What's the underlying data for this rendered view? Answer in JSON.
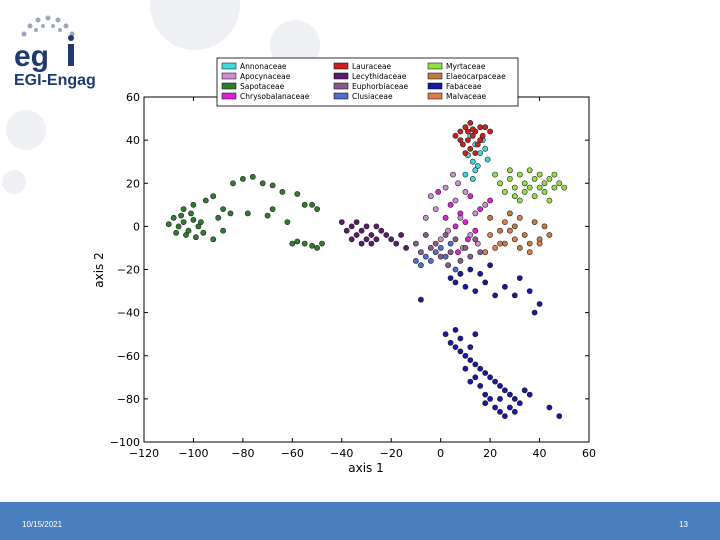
{
  "slide": {
    "logo_text": "EGI-Engag",
    "footer_date": "10/15/2021",
    "page_number": "13",
    "footer_color": "#4a7fbf"
  },
  "chart_data": {
    "type": "scatter",
    "xlabel": "axis 1",
    "ylabel": "axis 2",
    "xlim": [
      -120,
      60
    ],
    "ylim": [
      -100,
      60
    ],
    "xticks": [
      -120,
      -100,
      -80,
      -60,
      -40,
      -20,
      0,
      20,
      40,
      60
    ],
    "yticks": [
      -100,
      -80,
      -60,
      -40,
      -20,
      0,
      20,
      40,
      60
    ],
    "xtick_labels": [
      "−120",
      "−100",
      "−80",
      "−60",
      "−40",
      "−20",
      "0",
      "20",
      "40",
      "60"
    ],
    "ytick_labels": [
      "−100",
      "−80",
      "−60",
      "−40",
      "−20",
      "0",
      "20",
      "40",
      "60"
    ],
    "grid": false,
    "legend_position": "top",
    "series": [
      {
        "name": "Annonaceae",
        "color": "#40d8e0",
        "points": [
          [
            12,
            42
          ],
          [
            14,
            38
          ],
          [
            16,
            34
          ],
          [
            13,
            30
          ],
          [
            15,
            28
          ],
          [
            11,
            33
          ],
          [
            17,
            40
          ],
          [
            18,
            36
          ],
          [
            14,
            26
          ],
          [
            10,
            24
          ],
          [
            19,
            31
          ],
          [
            13,
            22
          ]
        ]
      },
      {
        "name": "Apocynaceae",
        "color": "#c98fd0",
        "points": [
          [
            2,
            18
          ],
          [
            6,
            12
          ],
          [
            -2,
            8
          ],
          [
            8,
            4
          ],
          [
            3,
            -2
          ],
          [
            10,
            16
          ],
          [
            -4,
            14
          ],
          [
            14,
            6
          ],
          [
            5,
            24
          ],
          [
            0,
            -6
          ],
          [
            9,
            -10
          ],
          [
            -6,
            4
          ],
          [
            18,
            10
          ],
          [
            12,
            -4
          ],
          [
            7,
            20
          ],
          [
            15,
            -8
          ]
        ]
      },
      {
        "name": "Sapotaceae",
        "color": "#2e7d2e",
        "points": [
          [
            -108,
            4
          ],
          [
            -106,
            0
          ],
          [
            -104,
            2
          ],
          [
            -102,
            -2
          ],
          [
            -100,
            3
          ],
          [
            -98,
            0
          ],
          [
            -103,
            -4
          ],
          [
            -107,
            -3
          ],
          [
            -101,
            6
          ],
          [
            -99,
            -5
          ],
          [
            -105,
            5
          ],
          [
            -97,
            2
          ],
          [
            -110,
            1
          ],
          [
            -96,
            -3
          ],
          [
            -104,
            8
          ],
          [
            -100,
            10
          ],
          [
            -95,
            12
          ],
          [
            -92,
            14
          ],
          [
            -90,
            4
          ],
          [
            -88,
            8
          ],
          [
            -85,
            6
          ],
          [
            -84,
            20
          ],
          [
            -80,
            22
          ],
          [
            -76,
            23
          ],
          [
            -72,
            20
          ],
          [
            -68,
            19
          ],
          [
            -64,
            16
          ],
          [
            -58,
            15
          ],
          [
            -55,
            10
          ],
          [
            -52,
            10
          ],
          [
            -50,
            8
          ],
          [
            -62,
            2
          ],
          [
            -68,
            8
          ],
          [
            -70,
            5
          ],
          [
            -60,
            -8
          ],
          [
            -58,
            -7
          ],
          [
            -55,
            -8
          ],
          [
            -52,
            -9
          ],
          [
            -50,
            -10
          ],
          [
            -48,
            -8
          ],
          [
            -78,
            6
          ],
          [
            -88,
            -2
          ],
          [
            -92,
            -6
          ]
        ]
      },
      {
        "name": "Chrysobalanaceae",
        "color": "#e020d8",
        "points": [
          [
            4,
            10
          ],
          [
            8,
            6
          ],
          [
            12,
            14
          ],
          [
            6,
            0
          ],
          [
            10,
            2
          ],
          [
            14,
            -2
          ],
          [
            2,
            4
          ],
          [
            16,
            8
          ],
          [
            -1,
            16
          ],
          [
            11,
            -6
          ],
          [
            20,
            12
          ],
          [
            7,
            -12
          ]
        ]
      },
      {
        "name": "Lauraceae",
        "color": "#cc1f1f",
        "points": [
          [
            8,
            44
          ],
          [
            10,
            46
          ],
          [
            12,
            48
          ],
          [
            14,
            44
          ],
          [
            16,
            46
          ],
          [
            11,
            40
          ],
          [
            13,
            42
          ],
          [
            9,
            38
          ],
          [
            15,
            38
          ],
          [
            12,
            36
          ],
          [
            10,
            34
          ],
          [
            14,
            34
          ],
          [
            17,
            42
          ],
          [
            8,
            40
          ],
          [
            13,
            45
          ],
          [
            11,
            44
          ],
          [
            16,
            40
          ],
          [
            18,
            46
          ],
          [
            20,
            44
          ],
          [
            6,
            42
          ]
        ]
      },
      {
        "name": "Lecythidaceae",
        "color": "#5a1a6e",
        "points": [
          [
            -40,
            2
          ],
          [
            -38,
            -2
          ],
          [
            -36,
            0
          ],
          [
            -34,
            -4
          ],
          [
            -32,
            -2
          ],
          [
            -30,
            -6
          ],
          [
            -28,
            -4
          ],
          [
            -26,
            -6
          ],
          [
            -24,
            -2
          ],
          [
            -36,
            -6
          ],
          [
            -32,
            -8
          ],
          [
            -28,
            -8
          ],
          [
            -22,
            -4
          ],
          [
            -20,
            -6
          ],
          [
            -18,
            -8
          ],
          [
            -16,
            -4
          ],
          [
            -14,
            -10
          ],
          [
            -30,
            0
          ],
          [
            -34,
            2
          ],
          [
            -26,
            0
          ]
        ]
      },
      {
        "name": "Euphorbiaceae",
        "color": "#8a5a8a",
        "points": [
          [
            2,
            -4
          ],
          [
            -2,
            -8
          ],
          [
            4,
            -12
          ],
          [
            6,
            -6
          ],
          [
            -4,
            -10
          ],
          [
            0,
            -14
          ],
          [
            8,
            -16
          ],
          [
            10,
            -10
          ],
          [
            -6,
            -4
          ],
          [
            12,
            -14
          ],
          [
            -8,
            -12
          ],
          [
            3,
            -18
          ],
          [
            14,
            -6
          ],
          [
            -10,
            -8
          ],
          [
            16,
            -12
          ]
        ]
      },
      {
        "name": "Clusiaceae",
        "color": "#5070c8",
        "points": [
          [
            -6,
            -14
          ],
          [
            -4,
            -16
          ],
          [
            -2,
            -12
          ],
          [
            0,
            -10
          ],
          [
            2,
            -14
          ],
          [
            6,
            -20
          ],
          [
            -8,
            -18
          ],
          [
            4,
            -8
          ],
          [
            8,
            -22
          ],
          [
            -10,
            -16
          ]
        ]
      },
      {
        "name": "Myrtaceae",
        "color": "#90e040",
        "points": [
          [
            24,
            20
          ],
          [
            28,
            22
          ],
          [
            30,
            18
          ],
          [
            32,
            24
          ],
          [
            34,
            20
          ],
          [
            36,
            26
          ],
          [
            38,
            22
          ],
          [
            40,
            18
          ],
          [
            42,
            20
          ],
          [
            44,
            22
          ],
          [
            46,
            18
          ],
          [
            48,
            20
          ],
          [
            26,
            16
          ],
          [
            30,
            14
          ],
          [
            34,
            16
          ],
          [
            38,
            14
          ],
          [
            42,
            16
          ],
          [
            44,
            12
          ],
          [
            40,
            24
          ],
          [
            36,
            18
          ],
          [
            32,
            12
          ],
          [
            28,
            26
          ],
          [
            46,
            24
          ],
          [
            50,
            18
          ],
          [
            22,
            24
          ]
        ]
      },
      {
        "name": "Elaeocarpaceae",
        "color": "#c07c40",
        "points": [
          [
            20,
            4
          ],
          [
            24,
            -2
          ],
          [
            28,
            6
          ],
          [
            30,
            0
          ],
          [
            34,
            -4
          ],
          [
            36,
            -8
          ],
          [
            38,
            2
          ],
          [
            40,
            -6
          ],
          [
            42,
            0
          ],
          [
            26,
            -8
          ],
          [
            32,
            -10
          ],
          [
            44,
            -4
          ]
        ]
      },
      {
        "name": "Fabaceae",
        "color": "#1818a0",
        "points": [
          [
            -8,
            -34
          ],
          [
            4,
            -24
          ],
          [
            6,
            -26
          ],
          [
            8,
            -22
          ],
          [
            10,
            -28
          ],
          [
            12,
            -20
          ],
          [
            14,
            -30
          ],
          [
            16,
            -22
          ],
          [
            18,
            -26
          ],
          [
            20,
            -18
          ],
          [
            22,
            -32
          ],
          [
            26,
            -28
          ],
          [
            30,
            -32
          ],
          [
            32,
            -24
          ],
          [
            36,
            -30
          ],
          [
            38,
            -40
          ],
          [
            40,
            -36
          ],
          [
            2,
            -50
          ],
          [
            4,
            -54
          ],
          [
            6,
            -56
          ],
          [
            8,
            -58
          ],
          [
            10,
            -60
          ],
          [
            12,
            -62
          ],
          [
            14,
            -64
          ],
          [
            16,
            -66
          ],
          [
            18,
            -68
          ],
          [
            20,
            -70
          ],
          [
            22,
            -72
          ],
          [
            24,
            -74
          ],
          [
            26,
            -76
          ],
          [
            28,
            -78
          ],
          [
            30,
            -80
          ],
          [
            32,
            -82
          ],
          [
            34,
            -76
          ],
          [
            36,
            -78
          ],
          [
            14,
            -70
          ],
          [
            16,
            -74
          ],
          [
            18,
            -78
          ],
          [
            20,
            -80
          ],
          [
            22,
            -84
          ],
          [
            24,
            -86
          ],
          [
            26,
            -88
          ],
          [
            30,
            -86
          ],
          [
            44,
            -84
          ],
          [
            48,
            -88
          ],
          [
            10,
            -66
          ],
          [
            12,
            -72
          ],
          [
            18,
            -82
          ],
          [
            24,
            -80
          ],
          [
            28,
            -84
          ],
          [
            8,
            -52
          ],
          [
            6,
            -48
          ],
          [
            12,
            -56
          ],
          [
            14,
            -50
          ]
        ]
      },
      {
        "name": "Malvaceae",
        "color": "#e07850",
        "points": [
          [
            20,
            -4
          ],
          [
            24,
            -8
          ],
          [
            28,
            -2
          ],
          [
            22,
            -10
          ],
          [
            26,
            2
          ],
          [
            30,
            -6
          ],
          [
            18,
            -12
          ],
          [
            32,
            4
          ],
          [
            36,
            -12
          ],
          [
            40,
            -8
          ]
        ]
      }
    ]
  }
}
